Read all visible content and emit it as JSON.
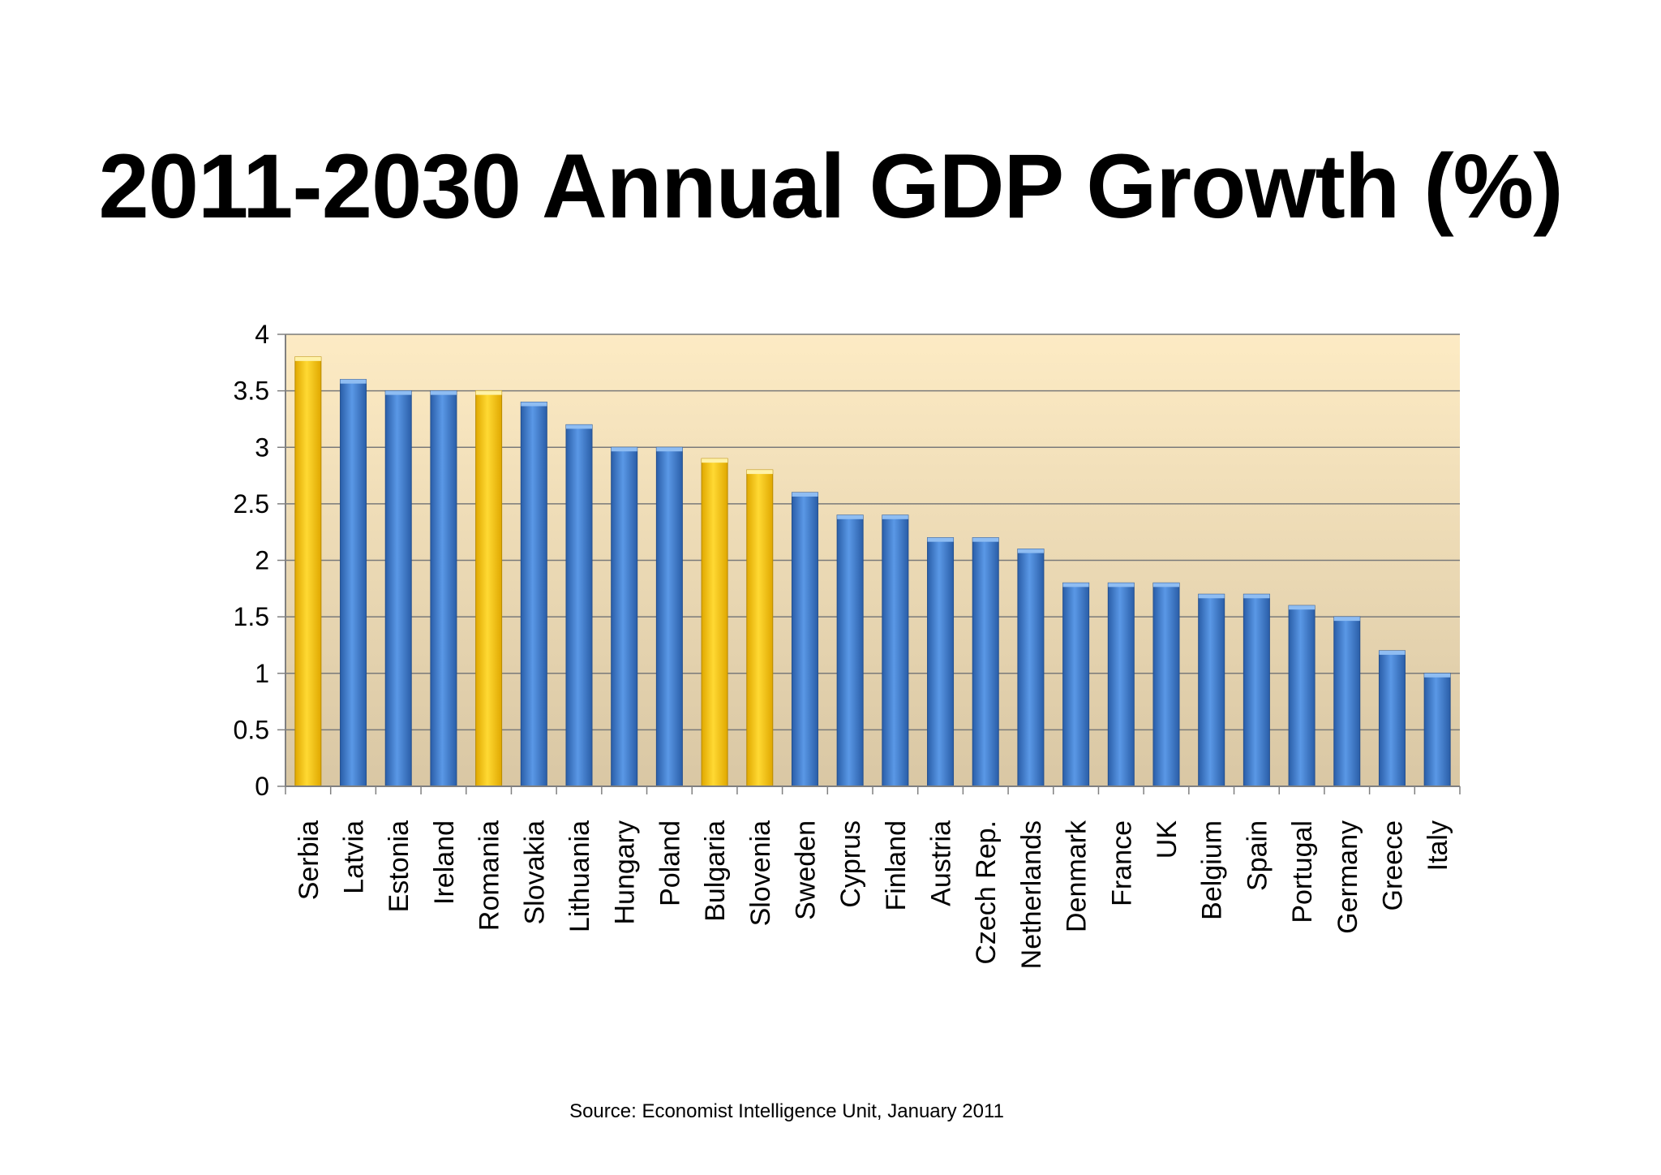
{
  "slide": {
    "title": "2011-2030 Annual GDP Growth (%)",
    "source": "Source: Economist Intelligence Unit, January 2011"
  },
  "colors": {
    "default_bar": "#3f7fd4",
    "highlight_bar": "#ffcc00",
    "plot_bg_top": "#fdebc4",
    "plot_bg_bottom": "#d9c7a4",
    "gridline": "#7a7a7a"
  },
  "chart_data": {
    "type": "bar",
    "title": "",
    "xlabel": "",
    "ylabel": "",
    "ylim": [
      0,
      4
    ],
    "yticks": [
      0,
      0.5,
      1,
      1.5,
      2,
      2.5,
      3,
      3.5,
      4
    ],
    "grid": true,
    "legend": "none",
    "categories": [
      "Serbia",
      "Latvia",
      "Estonia",
      "Ireland",
      "Romania",
      "Slovakia",
      "Lithuania",
      "Hungary",
      "Poland",
      "Bulgaria",
      "Slovenia",
      "Sweden",
      "Cyprus",
      "Finland",
      "Austria",
      "Czech Rep.",
      "Netherlands",
      "Denmark",
      "France",
      "UK",
      "Belgium",
      "Spain",
      "Portugal",
      "Germany",
      "Greece",
      "Italy"
    ],
    "values": [
      3.8,
      3.6,
      3.5,
      3.5,
      3.5,
      3.4,
      3.2,
      3.0,
      3.0,
      2.9,
      2.8,
      2.6,
      2.4,
      2.4,
      2.2,
      2.2,
      2.1,
      1.8,
      1.8,
      1.8,
      1.7,
      1.7,
      1.6,
      1.5,
      1.2,
      1.0
    ],
    "highlighted": [
      "Serbia",
      "Romania",
      "Bulgaria",
      "Slovenia"
    ]
  }
}
